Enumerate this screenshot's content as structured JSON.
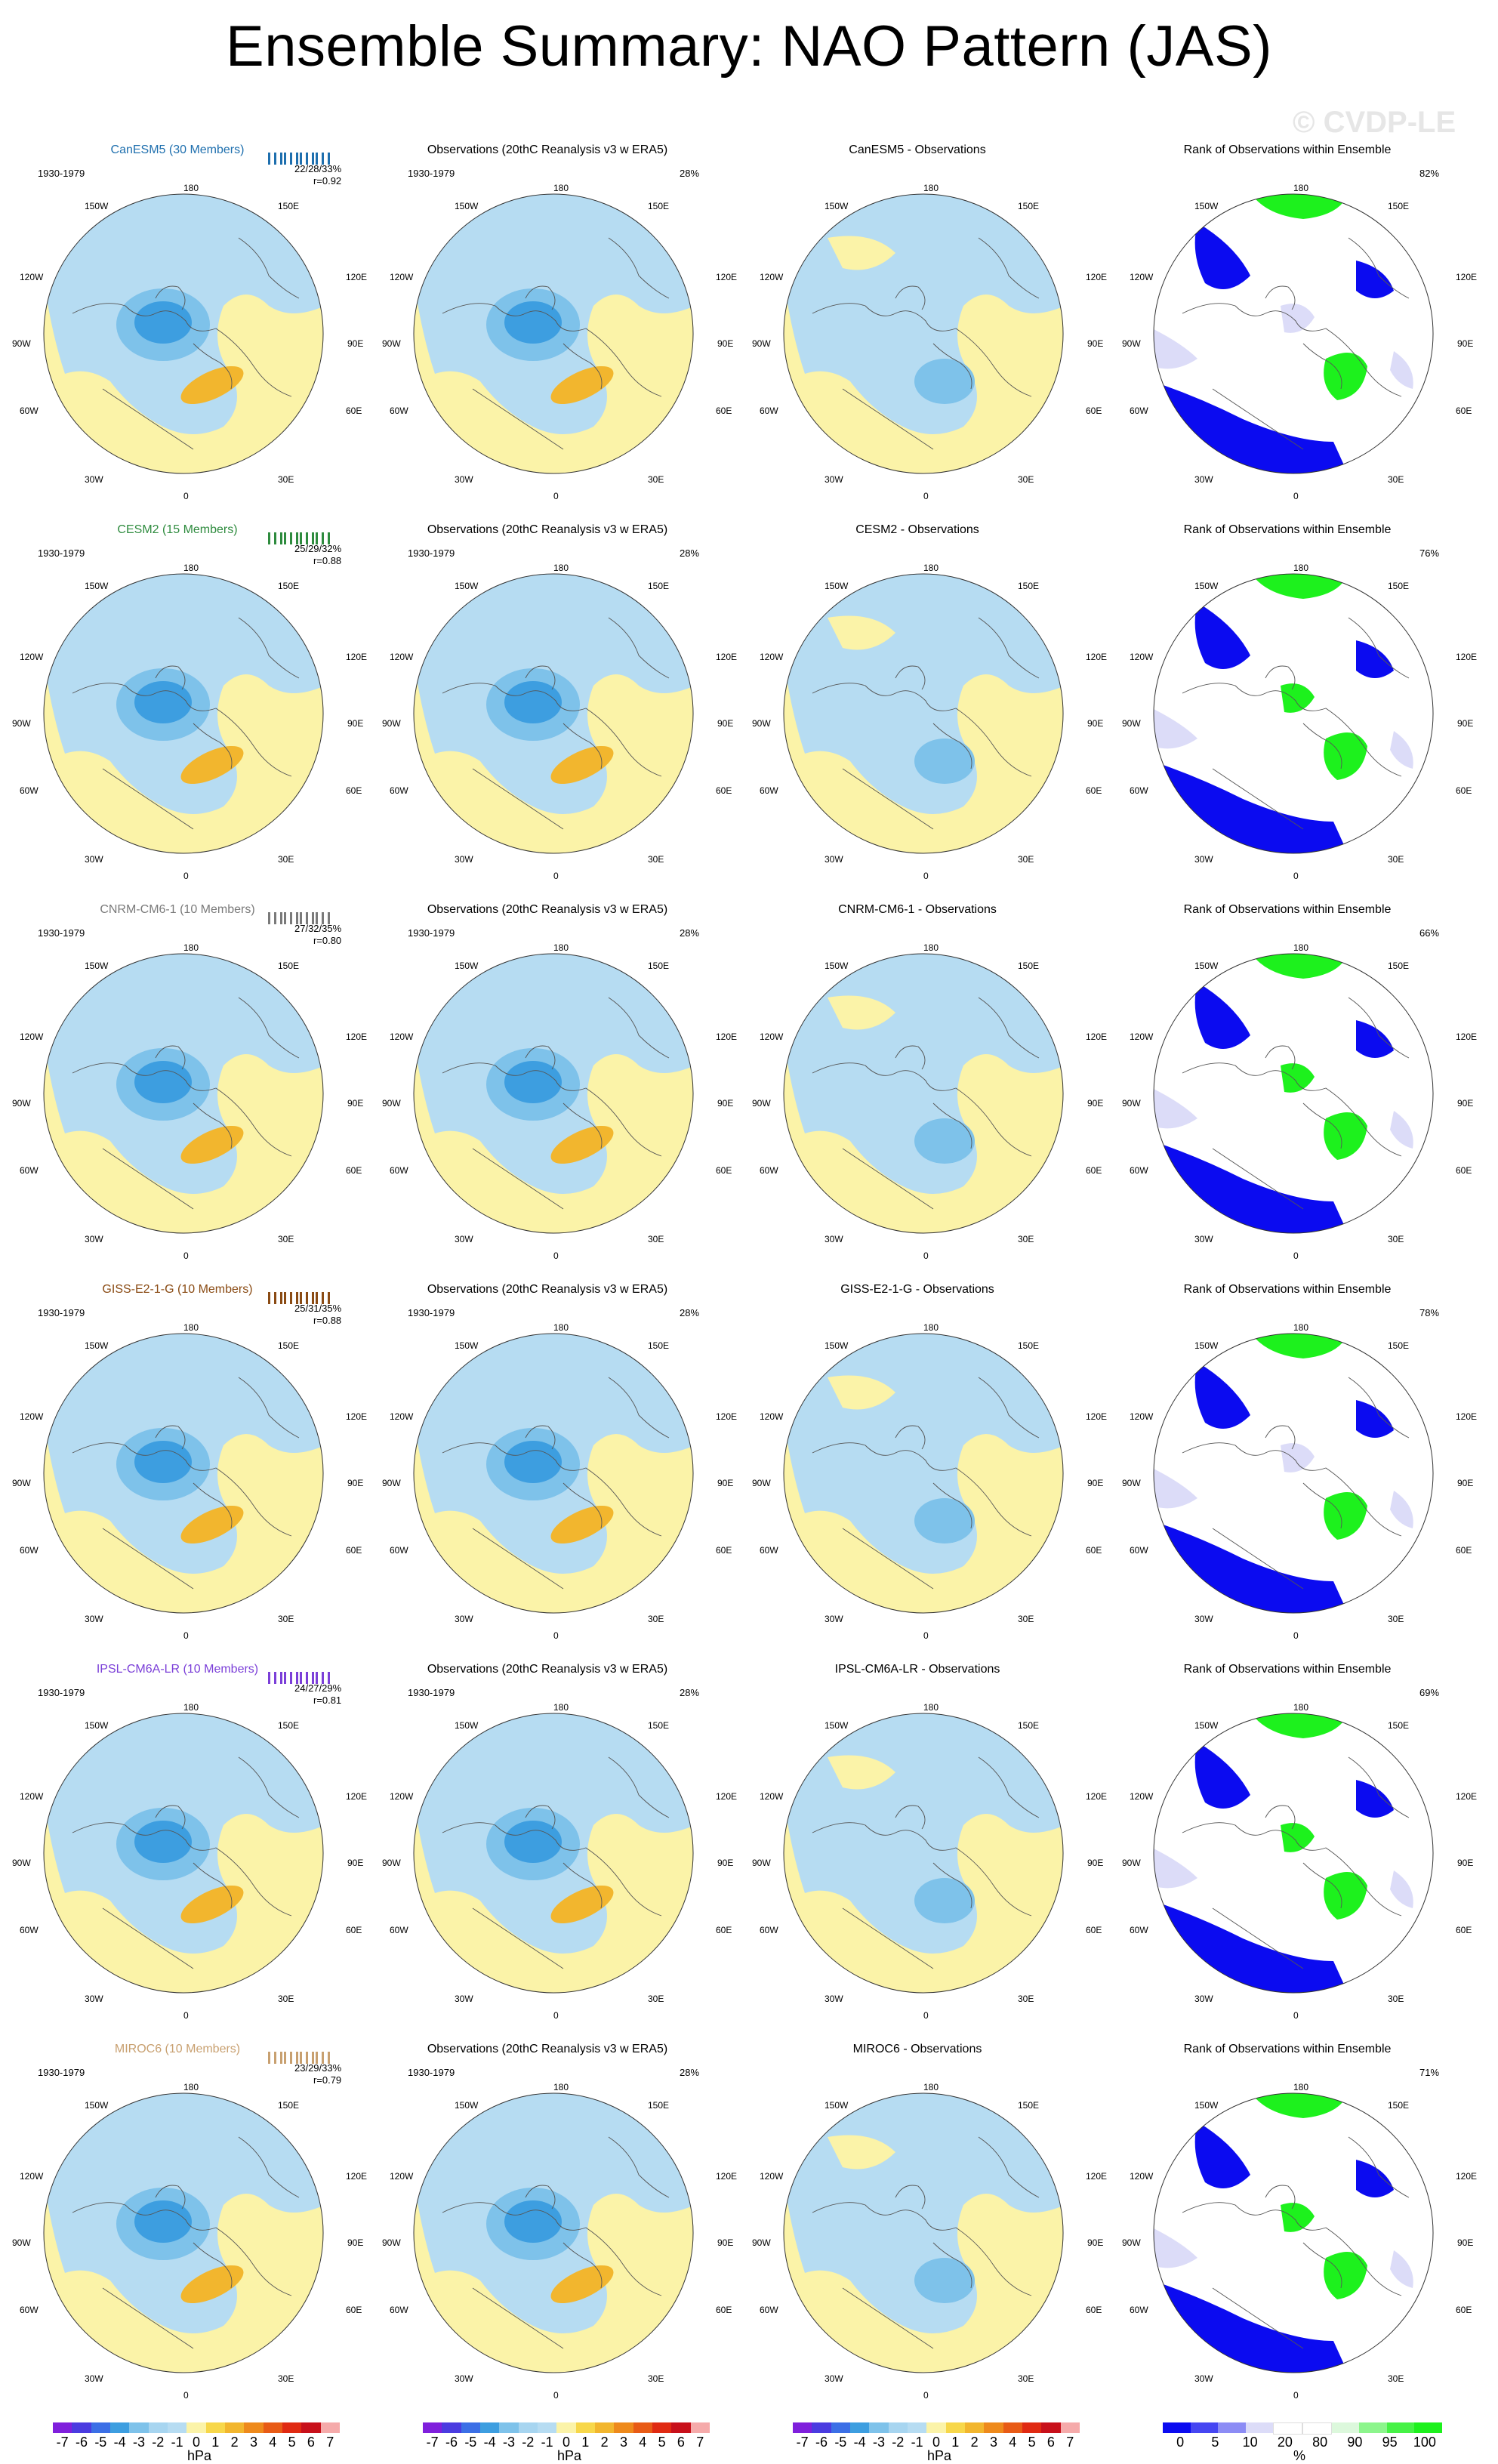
{
  "title": "Ensemble Summary: NAO Pattern (JAS)",
  "watermark": "© CVDP-LE",
  "colors": {
    "neg_fill": "#b6dcf2",
    "neg_mid": "#7ec2ea",
    "neg_strong": "#3d9ee0",
    "pos_fill": "#fbf3a8",
    "pos_strong": "#f2b62e",
    "rank_blue": "#0b0bf0",
    "rank_light": "#dcdcf8",
    "rank_green": "#1df11d"
  },
  "period": "1930-1979",
  "obs_title": "Observations (20thC Reanalysis v3 w ERA5)",
  "obs_percent": "28%",
  "rank_title": "Rank of Observations within Ensemble",
  "lon_labels": {
    "top": "180",
    "tl": "150W",
    "tr": "150E",
    "l1": "120W",
    "r1": "120E",
    "l2": "90W",
    "r2": "90E",
    "l3": "60W",
    "r3": "60E",
    "bl": "30W",
    "br": "30E",
    "bottom": "0"
  },
  "rows": [
    {
      "model_title": "CanESM5 (30 Members)",
      "title_color": "#1e6fae",
      "stats_line1": "22/28/33%",
      "stats_line2": "r=0.92",
      "diff_title": "CanESM5 - Observations",
      "rank_percent": "82%"
    },
    {
      "model_title": "CESM2 (15 Members)",
      "title_color": "#2e8b3e",
      "stats_line1": "25/29/32%",
      "stats_line2": "r=0.88",
      "diff_title": "CESM2 - Observations",
      "rank_percent": "76%"
    },
    {
      "model_title": "CNRM-CM6-1 (10 Members)",
      "title_color": "#7a7a7a",
      "stats_line1": "27/32/35%",
      "stats_line2": "r=0.80",
      "diff_title": "CNRM-CM6-1 - Observations",
      "rank_percent": "66%"
    },
    {
      "model_title": "GISS-E2-1-G (10 Members)",
      "title_color": "#8a4b14",
      "stats_line1": "25/31/35%",
      "stats_line2": "r=0.88",
      "diff_title": "GISS-E2-1-G - Observations",
      "rank_percent": "78%"
    },
    {
      "model_title": "IPSL-CM6A-LR (10 Members)",
      "title_color": "#7b3fd8",
      "stats_line1": "24/27/29%",
      "stats_line2": "r=0.81",
      "diff_title": "IPSL-CM6A-LR - Observations",
      "rank_percent": "69%"
    },
    {
      "model_title": "MIROC6 (10 Members)",
      "title_color": "#c8a070",
      "stats_line1": "23/29/33%",
      "stats_line2": "r=0.79",
      "diff_title": "MIROC6 - Observations",
      "rank_percent": "71%"
    }
  ],
  "colorbar_hpa": {
    "colors": [
      "#7f1fdc",
      "#4a3be0",
      "#3b6fe6",
      "#3d9ee0",
      "#7ec2ea",
      "#a7d5f0",
      "#b6dcf2",
      "#fbf3a8",
      "#f7d74a",
      "#f2b62e",
      "#ee8a1c",
      "#e85b16",
      "#e02a12",
      "#c8101a",
      "#f5aaaa"
    ],
    "ticks": [
      "-7",
      "-6",
      "-5",
      "-4",
      "-3",
      "-2",
      "-1",
      "0",
      "1",
      "2",
      "3",
      "4",
      "5",
      "6",
      "7"
    ],
    "unit": "hPa"
  },
  "colorbar_rank": {
    "colors": [
      "#0b0bf0",
      "#4646f2",
      "#8c8cf5",
      "#dcdcf8",
      "#ffffff",
      "#ffffff",
      "#dcf8dc",
      "#8cf58c",
      "#46f246",
      "#1df11d"
    ],
    "ticks": [
      "0",
      "5",
      "10",
      "20",
      "80",
      "90",
      "95",
      "100"
    ],
    "unit": "%"
  }
}
